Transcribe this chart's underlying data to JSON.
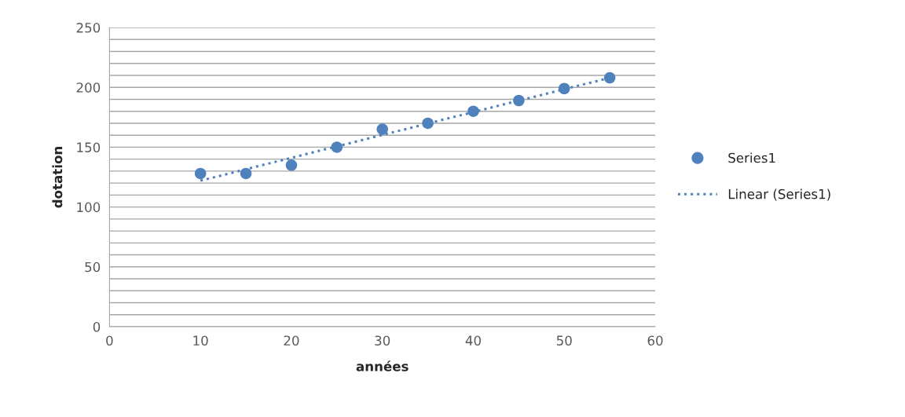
{
  "chart_data": {
    "type": "scatter",
    "xlabel": "années",
    "ylabel": "dotation",
    "x": [
      10,
      15,
      20,
      25,
      30,
      35,
      40,
      45,
      50,
      55
    ],
    "series": [
      {
        "name": "Series1",
        "color": "#4f81bd",
        "values": [
          128,
          128,
          135,
          150,
          165,
          170,
          180,
          189,
          199,
          208
        ],
        "marker": "circle"
      },
      {
        "name": "Linear (Series1)",
        "type": "line",
        "color": "#4f81bd",
        "x": [
          10,
          55
        ],
        "values": [
          122,
          208
        ],
        "line_style": "dotted",
        "marker": "none"
      }
    ],
    "xlim": [
      0,
      60
    ],
    "xticks": [
      0,
      10,
      20,
      30,
      40,
      50,
      60
    ],
    "ylim": [
      0,
      250
    ],
    "yticks": [
      0,
      {
        "value": 10,
        "label": null
      },
      {
        "value": 20,
        "label": null
      },
      {
        "value": 30,
        "label": null
      },
      {
        "value": 40,
        "label": null
      },
      50,
      {
        "value": 60,
        "label": null
      },
      {
        "value": 70,
        "label": null
      },
      {
        "value": 80,
        "label": null
      },
      {
        "value": 90,
        "label": null
      },
      100,
      {
        "value": 110,
        "label": null
      },
      {
        "value": 120,
        "label": null
      },
      {
        "value": 130,
        "label": null
      },
      {
        "value": 140,
        "label": null
      },
      150,
      {
        "value": 160,
        "label": null
      },
      {
        "value": 170,
        "label": null
      },
      {
        "value": 180,
        "label": null
      },
      {
        "value": 190,
        "label": null
      },
      200,
      {
        "value": 210,
        "label": null
      },
      {
        "value": 220,
        "label": null
      },
      {
        "value": 230,
        "label": null
      },
      {
        "value": 240,
        "label": null
      },
      250
    ],
    "grid": "y",
    "legend": "right"
  }
}
